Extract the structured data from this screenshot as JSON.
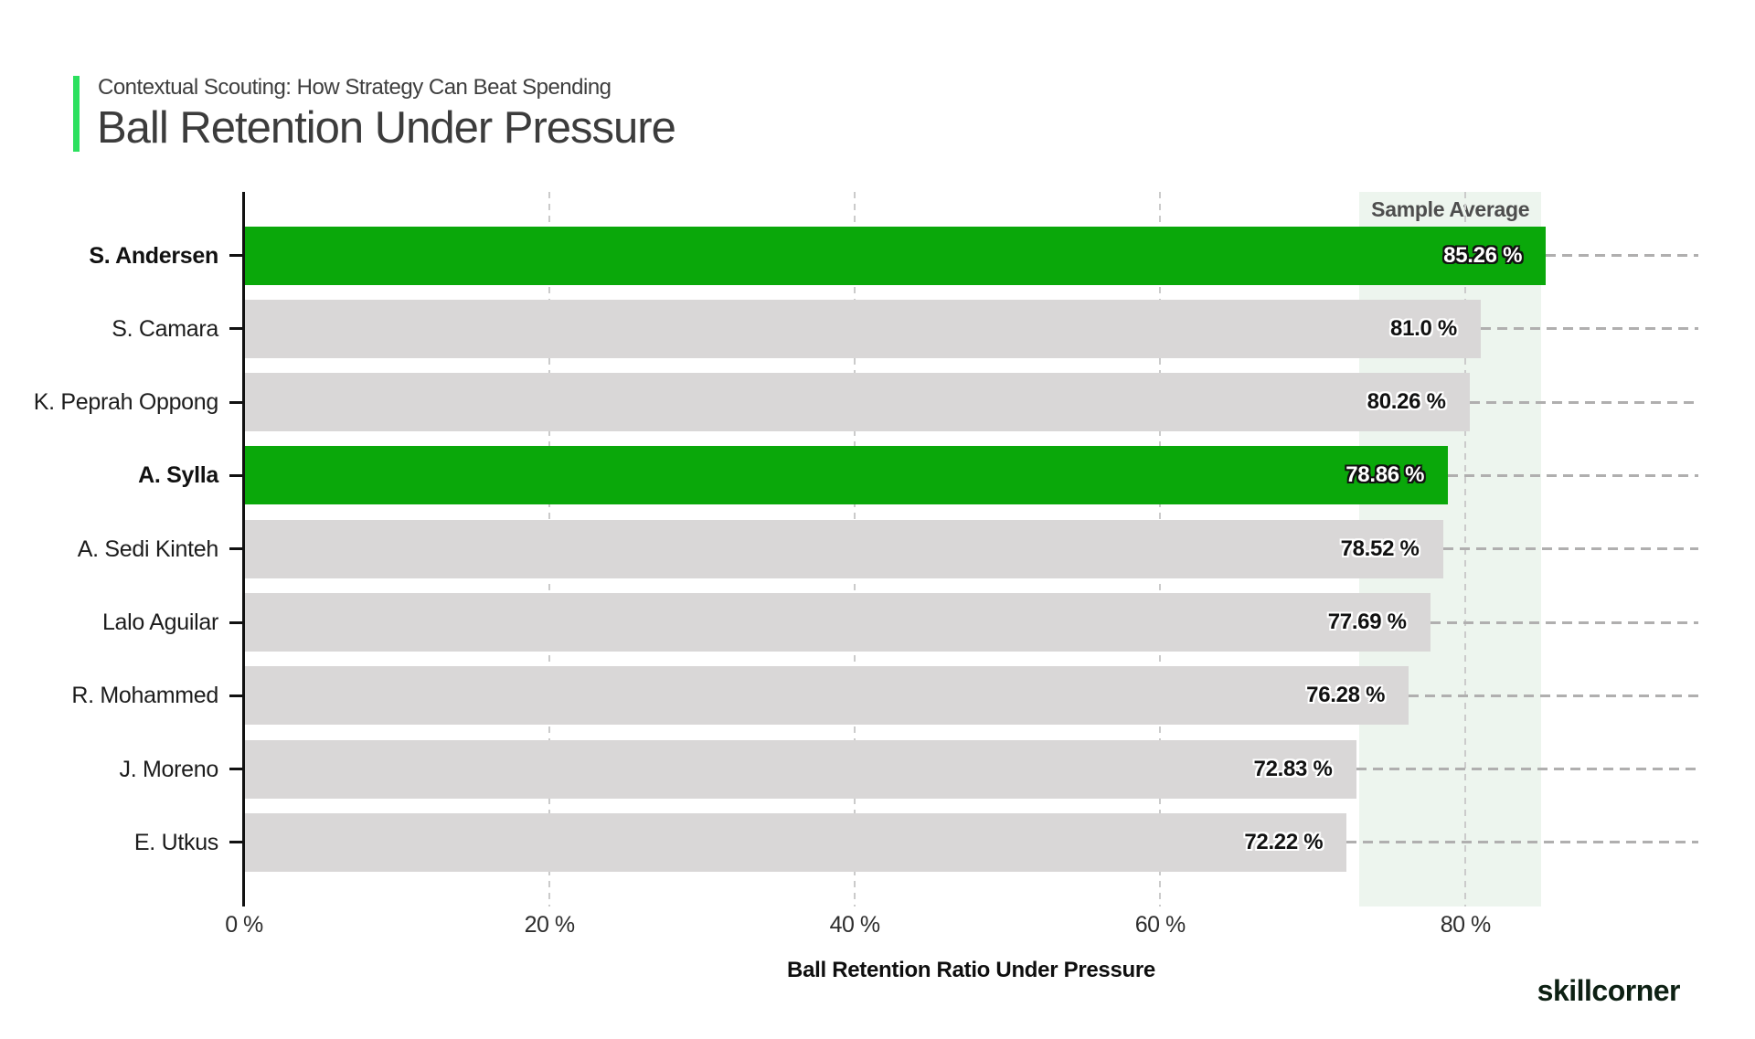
{
  "header": {
    "subtitle": "Contextual Scouting: How Strategy Can Beat Spending",
    "title": "Ball Retention Under Pressure"
  },
  "chart_data": {
    "type": "bar",
    "orientation": "horizontal",
    "title": "Ball Retention Under Pressure",
    "xlabel": "Ball Retention Ratio Under Pressure",
    "ylabel": "",
    "xlim": [
      0,
      95.25
    ],
    "grid": "dashed-vertical",
    "x_ticks": [
      {
        "value": 0,
        "label": "0 %"
      },
      {
        "value": 20,
        "label": "20 %"
      },
      {
        "value": 40,
        "label": "40 %"
      },
      {
        "value": 60,
        "label": "60 %"
      },
      {
        "value": 80,
        "label": "80 %"
      }
    ],
    "players": [
      {
        "name": "S. Andersen",
        "value": 85.26,
        "label": "85.26 %",
        "highlighted": true
      },
      {
        "name": "S. Camara",
        "value": 81.0,
        "label": "81.0 %",
        "highlighted": false
      },
      {
        "name": "K. Peprah Oppong",
        "value": 80.26,
        "label": "80.26 %",
        "highlighted": false
      },
      {
        "name": "A. Sylla",
        "value": 78.86,
        "label": "78.86 %",
        "highlighted": true
      },
      {
        "name": "A. Sedi Kinteh",
        "value": 78.52,
        "label": "78.52 %",
        "highlighted": false
      },
      {
        "name": "Lalo Aguilar",
        "value": 77.69,
        "label": "77.69 %",
        "highlighted": false
      },
      {
        "name": "R. Mohammed",
        "value": 76.28,
        "label": "76.28 %",
        "highlighted": false
      },
      {
        "name": "J. Moreno",
        "value": 72.83,
        "label": "72.83 %",
        "highlighted": false
      },
      {
        "name": "E. Utkus",
        "value": 72.22,
        "label": "72.22 %",
        "highlighted": false
      }
    ],
    "sample_average_band": {
      "label": "Sample Average",
      "from": 73.05,
      "to": 84.97
    },
    "colors": {
      "highlight_bar": "#0aa80a",
      "default_bar": "#d9d7d7",
      "band": "#edf5ee",
      "accent": "#2be05e",
      "grid": "#cbcbcb",
      "leader": "#b0afaf",
      "axis": "#111111"
    }
  },
  "footer": {
    "logo": "skillcorner"
  }
}
